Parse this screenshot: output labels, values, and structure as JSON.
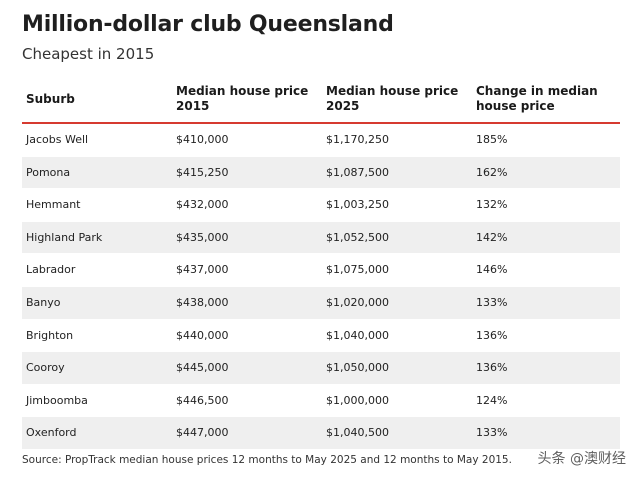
{
  "header": {
    "title": "Million-dollar club Queensland",
    "subtitle": "Cheapest in 2015"
  },
  "chart_data": {
    "type": "table",
    "title": "Million-dollar club Queensland",
    "subtitle": "Cheapest in 2015",
    "columns": [
      "Suburb",
      "Median house price 2015",
      "Median house price 2025",
      "Change in median house price"
    ],
    "rows": [
      [
        "Jacobs Well",
        "$410,000",
        "$1,170,250",
        "185%"
      ],
      [
        "Pomona",
        "$415,250",
        "$1,087,500",
        "162%"
      ],
      [
        "Hemmant",
        "$432,000",
        "$1,003,250",
        "132%"
      ],
      [
        "Highland Park",
        "$435,000",
        "$1,052,500",
        "142%"
      ],
      [
        "Labrador",
        "$437,000",
        "$1,075,000",
        "146%"
      ],
      [
        "Banyo",
        "$438,000",
        "$1,020,000",
        "133%"
      ],
      [
        "Brighton",
        "$440,000",
        "$1,040,000",
        "136%"
      ],
      [
        "Cooroy",
        "$445,000",
        "$1,050,000",
        "136%"
      ],
      [
        "Jimboomba",
        "$446,500",
        "$1,000,000",
        "124%"
      ],
      [
        "Oxenford",
        "$447,000",
        "$1,040,500",
        "133%"
      ]
    ]
  },
  "footer": {
    "source": "Source: PropTrack median house prices 12 months to May 2025 and 12 months to May 2015.",
    "watermark": "头条 @澳财经"
  },
  "colors": {
    "header_rule": "#d63a30",
    "row_stripe": "#efefef"
  }
}
